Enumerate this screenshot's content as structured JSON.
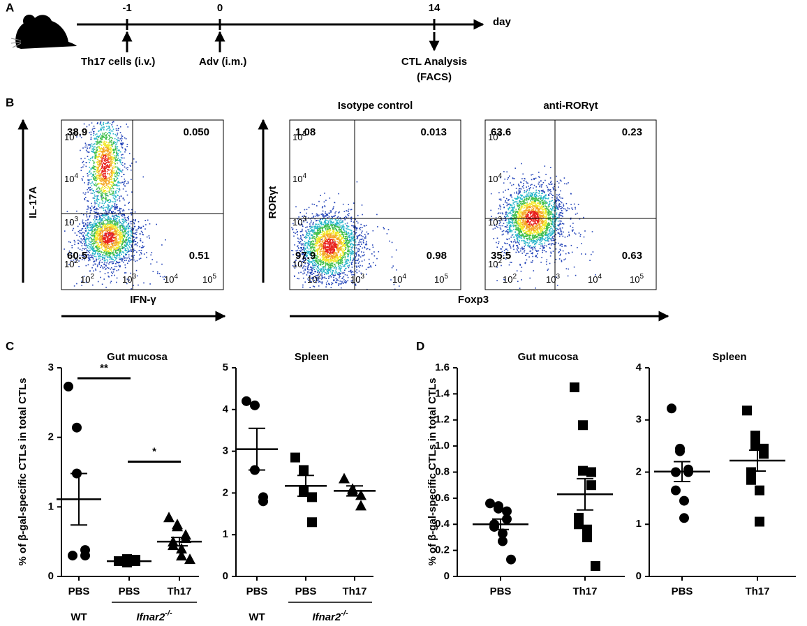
{
  "panels": {
    "A": {
      "label": "A",
      "unit": "day",
      "timepoints": [
        {
          "day": "-1",
          "event": [
            "Th17 cells (i.v.)"
          ]
        },
        {
          "day": "0",
          "event": [
            "Adv (i.m.)"
          ]
        },
        {
          "day": "14",
          "event": [
            "CTL Analysis",
            "(FACS)"
          ]
        }
      ]
    },
    "B": {
      "label": "B",
      "tick_base": "10",
      "exponents": [
        "2",
        "3",
        "4",
        "5"
      ],
      "shared": {
        "ylabel": "RORγt",
        "xlabel": "Foxp3"
      },
      "plots": [
        {
          "ylabel": "IL-17A",
          "xlabel": "IFN-γ",
          "quadrants": {
            "ul": "38.9",
            "ur": "0.050",
            "ll": "60.5",
            "lr": "0.51"
          }
        },
        {
          "title": "Isotype control",
          "quadrants": {
            "ul": "1.08",
            "ur": "0.013",
            "ll": "97.9",
            "lr": "0.98"
          }
        },
        {
          "title": "anti-RORγt",
          "quadrants": {
            "ul": "63.6",
            "ur": "0.23",
            "ll": "35.5",
            "lr": "0.63"
          }
        }
      ]
    },
    "C": {
      "label": "C"
    },
    "D": {
      "label": "D"
    }
  },
  "chart_data": [
    {
      "type": "dot",
      "title": "Gut mucosa",
      "ylabel": "% of β-gal-specific CTLs in total CTLs",
      "categories": [
        "PBS",
        "PBS",
        "Th17"
      ],
      "groups": [
        {
          "label": "WT"
        },
        {
          "label": "Ifnar2",
          "sup": "-/-"
        }
      ],
      "markers": [
        "circle",
        "square",
        "triangle"
      ],
      "color": "#000000",
      "points": [
        [
          2.73,
          2.14,
          1.48,
          0.38,
          0.3,
          0.3
        ],
        [
          0.22,
          0.2,
          0.25,
          0.22,
          0.24
        ],
        [
          0.85,
          0.75,
          0.72,
          0.6,
          0.55,
          0.5,
          0.45,
          0.4,
          0.3,
          0.25
        ]
      ],
      "mean": [
        1.11,
        0.22,
        0.5
      ],
      "sem": [
        0.37,
        0.03,
        0.06
      ],
      "annotations": [
        "**",
        "*"
      ],
      "ylim": [
        0,
        3
      ],
      "yticks": [
        0,
        1,
        2,
        3
      ]
    },
    {
      "type": "dot",
      "title": "Spleen",
      "categories": [
        "PBS",
        "PBS",
        "Th17"
      ],
      "groups": [
        {
          "label": "WT"
        },
        {
          "label": "Ifnar2",
          "sup": "-/-"
        }
      ],
      "markers": [
        "circle",
        "square",
        "triangle"
      ],
      "color": "#000000",
      "points": [
        [
          4.2,
          4.1,
          2.55,
          1.9,
          1.8
        ],
        [
          2.85,
          2.55,
          2.05,
          1.9,
          1.3
        ],
        [
          2.35,
          2.1,
          2.05,
          1.95,
          1.7
        ]
      ],
      "mean": [
        3.05,
        2.17,
        2.05
      ],
      "sem": [
        0.5,
        0.25,
        0.12
      ],
      "ylim": [
        0,
        5
      ],
      "yticks": [
        0,
        1,
        2,
        3,
        4,
        5
      ]
    },
    {
      "type": "dot",
      "title": "Gut mucosa",
      "ylabel": "% of β-gal-specific CTLs in total CTLs",
      "categories": [
        "PBS",
        "Th17"
      ],
      "markers": [
        "circle",
        "square"
      ],
      "color": "#000000",
      "points": [
        [
          0.56,
          0.54,
          0.52,
          0.5,
          0.44,
          0.4,
          0.38,
          0.33,
          0.27,
          0.13
        ],
        [
          1.45,
          1.16,
          0.81,
          0.8,
          0.7,
          0.45,
          0.4,
          0.36,
          0.3,
          0.08
        ]
      ],
      "mean": [
        0.4,
        0.63
      ],
      "sem": [
        0.04,
        0.12
      ],
      "ylim": [
        0,
        1.6
      ],
      "yticks": [
        0,
        0.2,
        0.4,
        0.6,
        0.8,
        {
          "value": 1,
          "label": "1.0"
        },
        1.2,
        1.4,
        1.6
      ]
    },
    {
      "type": "dot",
      "title": "Spleen",
      "categories": [
        "PBS",
        "Th17"
      ],
      "markers": [
        "circle",
        "square"
      ],
      "color": "#000000",
      "points": [
        [
          3.22,
          2.45,
          2.4,
          2.05,
          2.0,
          2.0,
          1.65,
          1.45,
          1.12
        ],
        [
          3.18,
          2.7,
          2.52,
          2.45,
          2.35,
          2.0,
          1.85,
          1.65,
          1.05
        ]
      ],
      "mean": [
        2.01,
        2.22
      ],
      "sem": [
        0.19,
        0.2
      ],
      "ylim": [
        0,
        4
      ],
      "yticks": [
        0,
        1,
        2,
        3,
        4
      ]
    }
  ]
}
